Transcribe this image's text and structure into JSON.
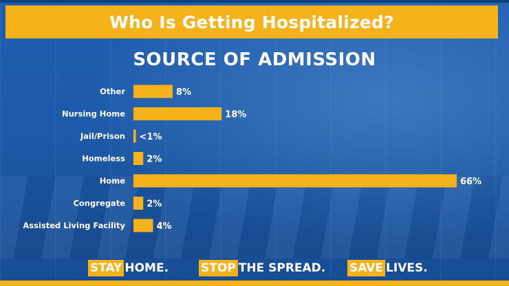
{
  "header": {
    "title": "Who Is Getting Hospitalized?",
    "subtitle": "SOURCE OF ADMISSION"
  },
  "chart_data": {
    "type": "bar",
    "orientation": "horizontal",
    "title": "SOURCE OF ADMISSION",
    "categories": [
      "Other",
      "Nursing Home",
      "Jail/Prison",
      "Homeless",
      "Home",
      "Congregate",
      "Assisted Living Facility"
    ],
    "values": [
      8,
      18,
      0.5,
      2,
      66,
      2,
      4
    ],
    "value_labels": [
      "8%",
      "18%",
      "<1%",
      "2%",
      "66%",
      "2%",
      "4%"
    ],
    "unit": "%",
    "bar_color": "#f6b21b",
    "grid": false,
    "legend": "none"
  },
  "footer": {
    "items": [
      {
        "highlight": "STAY",
        "rest": "HOME."
      },
      {
        "highlight": "STOP",
        "rest": "THE SPREAD."
      },
      {
        "highlight": "SAVE",
        "rest": "LIVES."
      }
    ]
  },
  "colors": {
    "accent": "#f6b21b",
    "background": "#1d5aa8",
    "text": "#ffffff"
  }
}
